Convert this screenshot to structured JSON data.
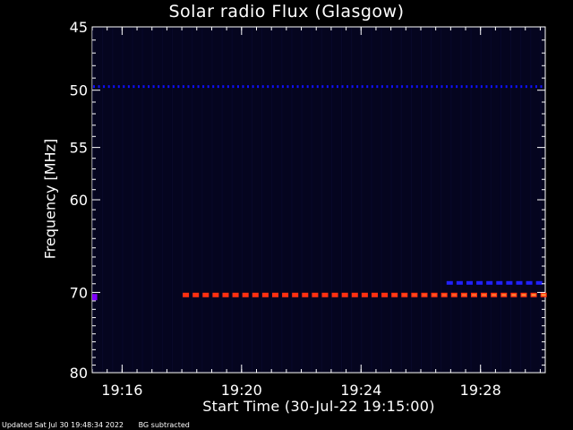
{
  "chart_data": {
    "type": "heatmap",
    "title": "Solar radio Flux (Glasgow)",
    "xlabel": "Start Time (30-Jul-22 19:15:00)",
    "ylabel": "Frequency [MHz]",
    "x_ticks": [
      "19:16",
      "19:20",
      "19:24",
      "19:28"
    ],
    "y_ticks": [
      45,
      50,
      55,
      60,
      70,
      80
    ],
    "xlim": [
      "19:15:00",
      "19:30:10"
    ],
    "ylim": [
      45,
      80
    ],
    "y_scale": "log",
    "background_color": "#000000",
    "plot_background": "#05051f",
    "emission_bands": [
      {
        "frequency_mhz": 49.7,
        "time_range": [
          "19:15:00",
          "19:30:10"
        ],
        "intensity": "low",
        "color": "#1010ff",
        "pattern": "dashed"
      },
      {
        "frequency_mhz": 70.3,
        "time_range": [
          "19:18:00",
          "19:30:10"
        ],
        "intensity": "high",
        "color": "#ff3010",
        "pattern": "dashed",
        "highlight_color": "#ffa040"
      },
      {
        "frequency_mhz": 68.9,
        "time_range": [
          "19:26:50",
          "19:30:10"
        ],
        "intensity": "medium",
        "color": "#2020ff",
        "pattern": "dashed"
      },
      {
        "frequency_mhz": 70.5,
        "time_range": [
          "19:15:00",
          "19:15:10"
        ],
        "intensity": "medium",
        "color": "#8000ff",
        "pattern": "solid"
      }
    ]
  },
  "footer": {
    "updated": "Updated Sat Jul 30 19:48:34 2022",
    "note": "BG subtracted"
  }
}
